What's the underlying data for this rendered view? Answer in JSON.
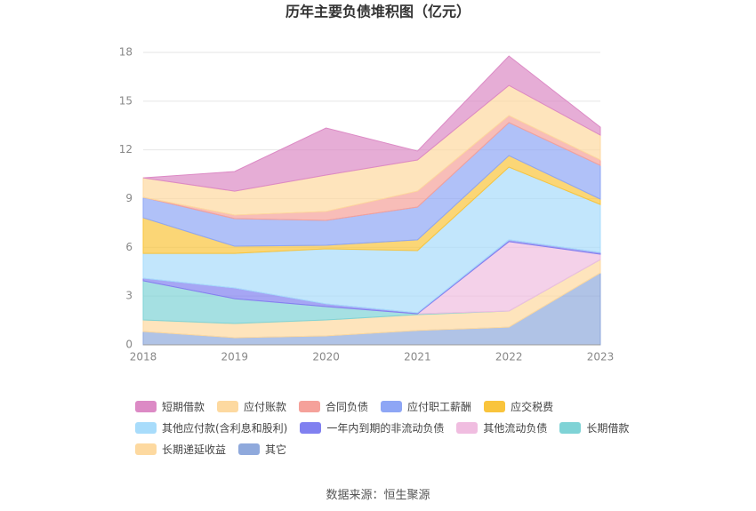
{
  "chart_data": {
    "type": "stacked_area",
    "title": "历年主要负债堆积图（亿元）",
    "categories": [
      "2018",
      "2019",
      "2020",
      "2021",
      "2022",
      "2023"
    ],
    "series": [
      {
        "name": "其它",
        "color": "#8fa9dc",
        "values": [
          0.82,
          0.44,
          0.55,
          0.88,
          1.09,
          4.43
        ]
      },
      {
        "name": "长期递延收益",
        "color": "#fdd9a0",
        "values": [
          0.71,
          0.87,
          0.98,
          0.98,
          0.99,
          0.82
        ]
      },
      {
        "name": "长期借款",
        "color": "#7fd3d6",
        "values": [
          2.41,
          1.53,
          0.82,
          0.05,
          0,
          0
        ]
      },
      {
        "name": "其他流动负债",
        "color": "#f0bde0",
        "values": [
          0,
          0,
          0,
          0,
          4.27,
          0.33
        ]
      },
      {
        "name": "一年内到期的非流动负债",
        "color": "#8080f0",
        "values": [
          0.16,
          0.66,
          0.17,
          0.06,
          0.11,
          0.11
        ]
      },
      {
        "name": "其他应付款(含利息和股利)",
        "color": "#a8dcfb",
        "values": [
          1.53,
          2.13,
          3.39,
          3.83,
          4.48,
          2.95
        ]
      },
      {
        "name": "应交税费",
        "color": "#f9c43c",
        "values": [
          2.19,
          0.44,
          0.22,
          0.66,
          0.71,
          0.33
        ]
      },
      {
        "name": "应付职工薪酬",
        "color": "#8ea6f5",
        "values": [
          1.26,
          1.7,
          1.53,
          2.02,
          2.03,
          2.08
        ]
      },
      {
        "name": "合同负债",
        "color": "#f5a19a",
        "values": [
          0,
          0.22,
          0.55,
          0.98,
          0.43,
          0.33
        ]
      },
      {
        "name": "应付账款",
        "color": "#fdd9a0",
        "values": [
          1.2,
          1.47,
          2.24,
          1.92,
          1.86,
          1.53
        ]
      },
      {
        "name": "短期借款",
        "color": "#dc8ac5",
        "values": [
          0,
          1.21,
          2.9,
          0.55,
          1.81,
          0.49
        ]
      }
    ],
    "legend_order": [
      10,
      9,
      8,
      7,
      6,
      5,
      4,
      3,
      2,
      1,
      0
    ],
    "ylim": [
      0,
      18
    ],
    "yticks": [
      0,
      3,
      6,
      9,
      12,
      15,
      18
    ],
    "grid": true,
    "source": "数据来源：恒生聚源"
  }
}
